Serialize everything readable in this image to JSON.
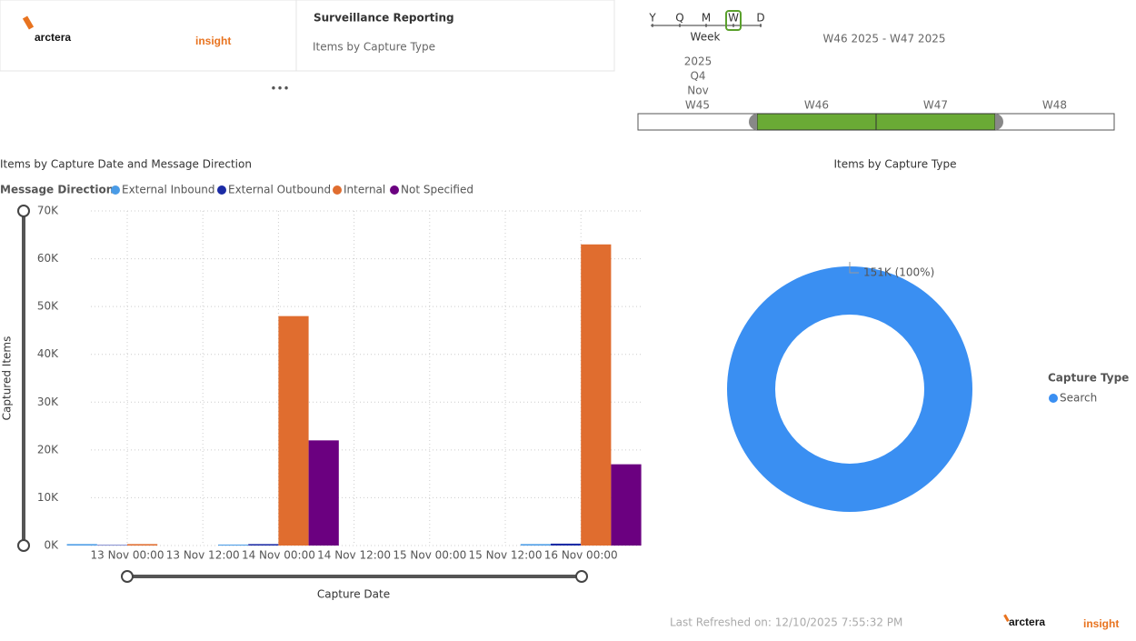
{
  "header": {
    "logo": {
      "brand": "arctera",
      "product": "insight"
    },
    "title": "Surveillance Reporting",
    "subtitle": "Items by Capture Type"
  },
  "timeline": {
    "granularity": [
      "Y",
      "Q",
      "M",
      "W",
      "D"
    ],
    "selected_granularity": "Week",
    "range": "W46 2025 - W47 2025",
    "year": "2025",
    "quarter": "Q4",
    "month": "Nov",
    "weeks": [
      "W45",
      "W46",
      "W47",
      "W48"
    ],
    "selected_weeks": [
      "W46",
      "W47"
    ]
  },
  "chart_data": [
    {
      "type": "bar",
      "title": "Items by Capture Date and Message Direction",
      "legend_title": "Message Direction",
      "x_label": "Capture Date",
      "y_label": "Captured Items",
      "categories": [
        "13 Nov 00:00",
        "13 Nov 12:00",
        "14 Nov 00:00",
        "14 Nov 12:00",
        "15 Nov 00:00",
        "15 Nov 12:00",
        "16 Nov 00:00"
      ],
      "series": [
        {
          "name": "External Inbound",
          "color": "#4a9be6",
          "values": [
            300,
            null,
            200,
            null,
            null,
            null,
            300
          ]
        },
        {
          "name": "External Outbound",
          "color": "#1b2ba5",
          "values": [
            100,
            null,
            300,
            null,
            null,
            null,
            400
          ]
        },
        {
          "name": "Internal",
          "color": "#e06d2f",
          "values": [
            300,
            null,
            48000,
            null,
            null,
            null,
            63000
          ]
        },
        {
          "name": "Not Specified",
          "color": "#6b0080",
          "values": [
            0,
            null,
            22000,
            null,
            null,
            null,
            17000
          ]
        }
      ],
      "ylim": [
        0,
        70000
      ],
      "yticks": [
        {
          "value": 0,
          "label": "0K"
        },
        {
          "value": 10000,
          "label": "10K"
        },
        {
          "value": 20000,
          "label": "20K"
        },
        {
          "value": 30000,
          "label": "30K"
        },
        {
          "value": 40000,
          "label": "40K"
        },
        {
          "value": 50000,
          "label": "50K"
        },
        {
          "value": 60000,
          "label": "60K"
        },
        {
          "value": 70000,
          "label": "70K"
        }
      ],
      "grid": true
    },
    {
      "type": "donut",
      "title": "Items by Capture Type",
      "legend_title": "Capture Type",
      "categories": [
        "Search"
      ],
      "values": [
        151000
      ],
      "value_labels": [
        "151K (100%)"
      ],
      "colors": [
        "#3a8ff2"
      ]
    }
  ],
  "footer": {
    "last_refreshed": "Last Refreshed on: 12/10/2025 7:55:32 PM",
    "logo": {
      "brand": "arctera",
      "product": "insight"
    }
  }
}
